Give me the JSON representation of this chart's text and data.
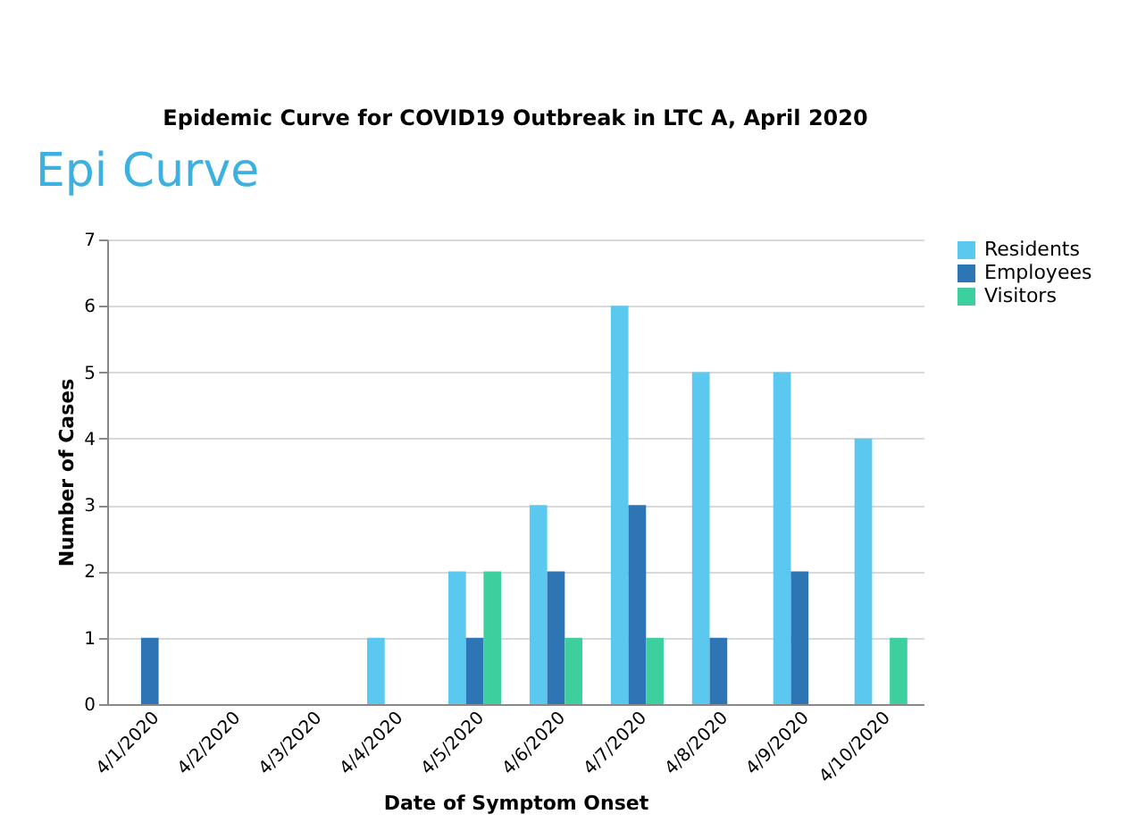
{
  "chart_data": {
    "type": "bar",
    "title": "Epidemic Curve for COVID19 Outbreak in LTC A, April 2020",
    "annotations": [
      "Epi Curve"
    ],
    "xlabel": "Date of Symptom Onset",
    "ylabel": "Number of Cases",
    "categories": [
      "4/1/2020",
      "4/2/2020",
      "4/3/2020",
      "4/4/2020",
      "4/5/2020",
      "4/6/2020",
      "4/7/2020",
      "4/8/2020",
      "4/9/2020",
      "4/10/2020"
    ],
    "series": [
      {
        "name": "Residents",
        "color": "#5bc8ef",
        "values": [
          0,
          0,
          0,
          1,
          2,
          3,
          6,
          5,
          5,
          4
        ]
      },
      {
        "name": "Employees",
        "color": "#2e75b6",
        "values": [
          1,
          0,
          0,
          0,
          1,
          2,
          3,
          1,
          2,
          0
        ]
      },
      {
        "name": "Visitors",
        "color": "#3ecf9f",
        "values": [
          0,
          0,
          0,
          0,
          2,
          1,
          1,
          0,
          0,
          1
        ]
      }
    ],
    "ylim": [
      0,
      7
    ],
    "yticks": [
      0,
      1,
      2,
      3,
      4,
      5,
      6,
      7
    ],
    "grid": "y",
    "legend": "top right"
  }
}
